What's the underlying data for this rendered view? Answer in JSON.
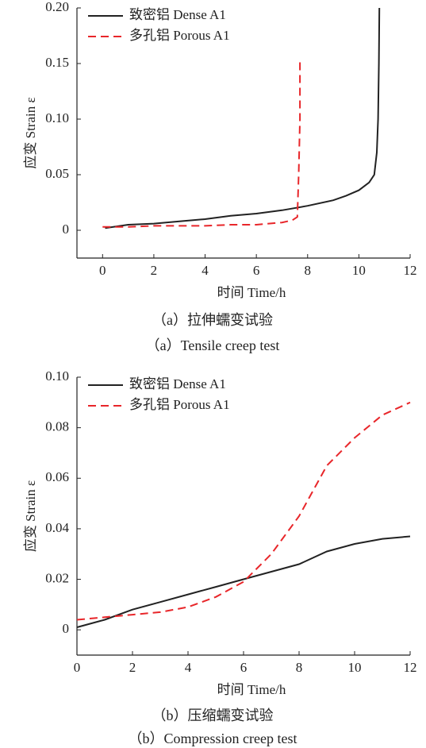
{
  "chart_data": [
    {
      "type": "line",
      "xlabel": "时间 Time/h",
      "ylabel": "应变 Strain ε",
      "captions": [
        "（a）拉伸蠕变试验",
        "（a）Tensile creep test"
      ],
      "xlim": [
        -1,
        12
      ],
      "xticks": [
        0,
        2,
        4,
        6,
        8,
        10,
        12
      ],
      "ylim": [
        -0.025,
        0.2
      ],
      "yticks": [
        0,
        0.05,
        {
          "value": 0.1,
          "label": "0.10"
        },
        0.15,
        {
          "value": 0.2,
          "label": "0.20"
        }
      ],
      "legend": "upper left",
      "series": [
        {
          "name": "致密铝 Dense A1",
          "color": "#222222",
          "dash": false,
          "x": [
            0.1,
            1,
            2,
            3,
            4,
            5,
            6,
            7,
            8,
            9,
            9.5,
            10,
            10.4,
            10.6,
            10.7,
            10.75,
            10.78,
            10.8
          ],
          "values": [
            0.002,
            0.005,
            0.006,
            0.008,
            0.01,
            0.013,
            0.015,
            0.018,
            0.022,
            0.027,
            0.031,
            0.036,
            0.043,
            0.05,
            0.07,
            0.1,
            0.15,
            0.2
          ]
        },
        {
          "name": "多孔铝 Porous A1",
          "color": "#e8262a",
          "dash": true,
          "x": [
            0,
            1,
            2,
            3,
            4,
            5,
            6,
            7,
            7.4,
            7.6,
            7.65,
            7.7,
            7.7
          ],
          "values": [
            0.003,
            0.003,
            0.004,
            0.004,
            0.004,
            0.005,
            0.005,
            0.007,
            0.009,
            0.012,
            0.05,
            0.1,
            0.155
          ]
        }
      ]
    },
    {
      "type": "line",
      "xlabel": "时间 Time/h",
      "ylabel": "应变 Strain ε",
      "captions": [
        "（b）压缩蠕变试验",
        "（b）Compression creep test"
      ],
      "xlim": [
        0,
        12
      ],
      "xticks": [
        0,
        2,
        4,
        6,
        8,
        10,
        12
      ],
      "ylim": [
        -0.01,
        0.1
      ],
      "yticks": [
        0,
        0.02,
        0.04,
        0.06,
        0.08,
        {
          "value": 0.1,
          "label": "0.10"
        }
      ],
      "legend": "upper left",
      "series": [
        {
          "name": "致密铝  Dense A1",
          "color": "#222222",
          "dash": false,
          "x": [
            0,
            1,
            2,
            3,
            4,
            5,
            6,
            7,
            8,
            9,
            10,
            11,
            12
          ],
          "values": [
            0.001,
            0.004,
            0.008,
            0.011,
            0.014,
            0.017,
            0.02,
            0.023,
            0.026,
            0.031,
            0.034,
            0.036,
            0.037
          ]
        },
        {
          "name": "多孔铝  Porous A1",
          "color": "#e8262a",
          "dash": true,
          "x": [
            0,
            1,
            2,
            3,
            4,
            5,
            6,
            7,
            8,
            9,
            10,
            11,
            12
          ],
          "values": [
            0.004,
            0.005,
            0.006,
            0.007,
            0.009,
            0.013,
            0.019,
            0.03,
            0.045,
            0.065,
            0.076,
            0.085,
            0.09
          ]
        }
      ]
    }
  ]
}
